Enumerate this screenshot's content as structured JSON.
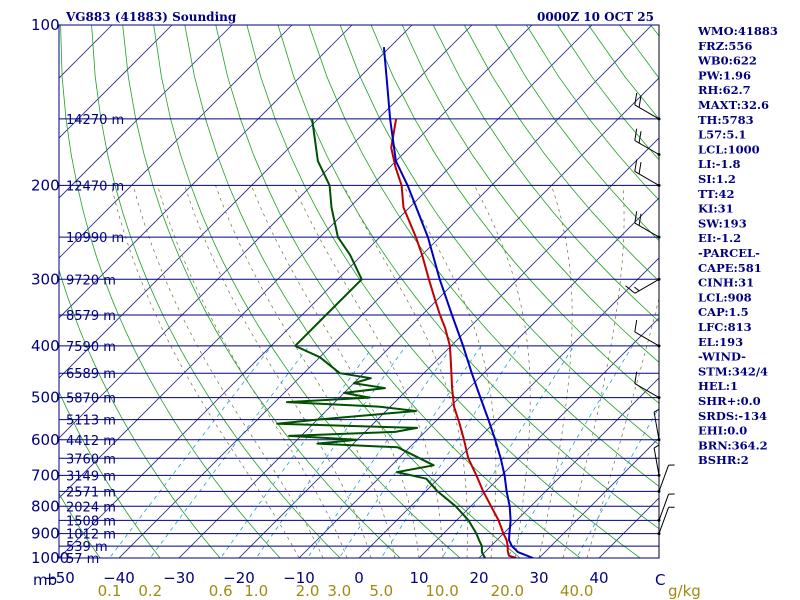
{
  "chart_data": {
    "type": "line",
    "title": "VG883 (41883) Sounding",
    "time": "0000Z 10 OCT 25",
    "pressure_unit": "mb",
    "mixing_ratio_unit": "g/kg",
    "xlim": [
      -50,
      50
    ],
    "plim": [
      1000,
      100
    ],
    "skew_deg": 45,
    "pressure_ticks": [
      "100",
      "200",
      "300",
      "400",
      "500",
      "600",
      "700",
      "800",
      "900",
      "1000"
    ],
    "temperature_ticks": [
      "−50",
      "−40",
      "−30",
      "−20",
      "−10",
      "0",
      "10",
      "20",
      "30",
      "40"
    ],
    "temperature_tick_end": "C",
    "mixing_ratio_ticks": [
      "0.1",
      "0.2",
      "0.6",
      "1.0",
      "2.0",
      "3.0",
      "5.0",
      "10.0",
      "20.0",
      "40.0"
    ],
    "height_levels": [
      {
        "p": 150,
        "label": "14270 m"
      },
      {
        "p": 200,
        "label": "12470 m"
      },
      {
        "p": 250,
        "label": "10990 m"
      },
      {
        "p": 300,
        "label": "9720 m"
      },
      {
        "p": 350,
        "label": "8579 m"
      },
      {
        "p": 400,
        "label": "7590 m"
      },
      {
        "p": 450,
        "label": "6589 m"
      },
      {
        "p": 500,
        "label": "5870 m"
      },
      {
        "p": 550,
        "label": "5113 m"
      },
      {
        "p": 600,
        "label": "4412 m"
      },
      {
        "p": 650,
        "label": "3760 m"
      },
      {
        "p": 700,
        "label": "3149 m"
      },
      {
        "p": 750,
        "label": "2571 m"
      },
      {
        "p": 800,
        "label": "2024 m"
      },
      {
        "p": 850,
        "label": "1508 m"
      },
      {
        "p": 900,
        "label": "1012 m"
      },
      {
        "p": 950,
        "label": "539 m"
      },
      {
        "p": 1000,
        "label": "57 m"
      }
    ],
    "series": [
      {
        "name": "Temperature",
        "color": "#c00000",
        "points": [
          [
            1000,
            26.2
          ],
          [
            990,
            24.6
          ],
          [
            970,
            23.6
          ],
          [
            950,
            22.8
          ],
          [
            925,
            21.6
          ],
          [
            900,
            20.0
          ],
          [
            850,
            17.0
          ],
          [
            800,
            13.4
          ],
          [
            750,
            9.6
          ],
          [
            700,
            5.8
          ],
          [
            650,
            1.6
          ],
          [
            600,
            -2.2
          ],
          [
            560,
            -5.6
          ],
          [
            520,
            -9.4
          ],
          [
            480,
            -12.8
          ],
          [
            450,
            -15.4
          ],
          [
            420,
            -18.2
          ],
          [
            400,
            -20.2
          ],
          [
            370,
            -24.0
          ],
          [
            350,
            -27.0
          ],
          [
            330,
            -30.0
          ],
          [
            300,
            -34.8
          ],
          [
            270,
            -40.0
          ],
          [
            250,
            -44.0
          ],
          [
            220,
            -51.0
          ],
          [
            200,
            -55.0
          ],
          [
            185,
            -59.0
          ],
          [
            170,
            -63.0
          ],
          [
            150,
            -67.0
          ]
        ]
      },
      {
        "name": "Dewpoint",
        "color": "#005000",
        "points": [
          [
            1000,
            21.0
          ],
          [
            975,
            19.5
          ],
          [
            950,
            18.5
          ],
          [
            925,
            17.0
          ],
          [
            900,
            15.5
          ],
          [
            850,
            12.0
          ],
          [
            800,
            7.5
          ],
          [
            750,
            2.0
          ],
          [
            710,
            -2.0
          ],
          [
            690,
            -8.0
          ],
          [
            670,
            -3.0
          ],
          [
            650,
            -6.5
          ],
          [
            620,
            -12.0
          ],
          [
            610,
            -26.0
          ],
          [
            600,
            -20.0
          ],
          [
            590,
            -32.0
          ],
          [
            580,
            -15.0
          ],
          [
            570,
            -12.0
          ],
          [
            560,
            -36.0
          ],
          [
            550,
            -30.0
          ],
          [
            530,
            -15.0
          ],
          [
            520,
            -22.0
          ],
          [
            510,
            -38.0
          ],
          [
            500,
            -25.0
          ],
          [
            490,
            -30.0
          ],
          [
            480,
            -24.0
          ],
          [
            470,
            -30.0
          ],
          [
            460,
            -28.0
          ],
          [
            450,
            -34.0
          ],
          [
            420,
            -40.0
          ],
          [
            400,
            -46.0
          ],
          [
            350,
            -46.0
          ],
          [
            300,
            -46.0
          ],
          [
            270,
            -52.0
          ],
          [
            250,
            -57.0
          ],
          [
            220,
            -63.0
          ],
          [
            200,
            -67.0
          ],
          [
            180,
            -73.0
          ],
          [
            150,
            -81.0
          ]
        ]
      },
      {
        "name": "Parcel",
        "color": "#0000c0",
        "points": [
          [
            1000,
            29.0
          ],
          [
            975,
            25.5
          ],
          [
            950,
            23.5
          ],
          [
            925,
            22.0
          ],
          [
            900,
            21.0
          ],
          [
            850,
            19.0
          ],
          [
            800,
            16.5
          ],
          [
            750,
            13.5
          ],
          [
            700,
            10.5
          ],
          [
            650,
            7.0
          ],
          [
            600,
            3.0
          ],
          [
            550,
            -1.5
          ],
          [
            500,
            -6.5
          ],
          [
            450,
            -12.0
          ],
          [
            400,
            -18.0
          ],
          [
            350,
            -25.0
          ],
          [
            300,
            -33.0
          ],
          [
            250,
            -42.0
          ],
          [
            200,
            -54.0
          ],
          [
            180,
            -60.0
          ],
          [
            150,
            -68.0
          ],
          [
            130,
            -74.0
          ],
          [
            110,
            -81.0
          ]
        ]
      }
    ],
    "wind_barbs": [
      {
        "p": 150,
        "dir": 300,
        "kt": 20
      },
      {
        "p": 175,
        "dir": 300,
        "kt": 20
      },
      {
        "p": 200,
        "dir": 300,
        "kt": 20
      },
      {
        "p": 250,
        "dir": 300,
        "kt": 20
      },
      {
        "p": 300,
        "dir": 240,
        "kt": 15
      },
      {
        "p": 400,
        "dir": 300,
        "kt": 10
      },
      {
        "p": 500,
        "dir": 300,
        "kt": 10
      },
      {
        "p": 600,
        "dir": 350,
        "kt": 5
      },
      {
        "p": 700,
        "dir": 350,
        "kt": 5
      },
      {
        "p": 750,
        "dir": 20,
        "kt": 5
      },
      {
        "p": 850,
        "dir": 20,
        "kt": 5
      },
      {
        "p": 900,
        "dir": 20,
        "kt": 5
      }
    ]
  },
  "indices": [
    "WMO:41883",
    "FRZ:556",
    "WB0:622",
    "PW:1.96",
    "RH:62.7",
    "MAXT:32.6",
    "TH:5783",
    "L57:5.1",
    "LCL:1000",
    "LI:-1.8",
    "SI:1.2",
    "TT:42",
    "KI:31",
    "SW:193",
    "EI:-1.2",
    "-PARCEL-",
    "CAPE:581",
    "CINH:31",
    "LCL:908",
    "CAP:1.5",
    "LFC:813",
    "EL:193",
    "-WIND-",
    "STM:342/4",
    "HEL:1",
    "SHR+:0.0",
    "SRDS:-134",
    "EHI:0.0",
    "BRN:364.2",
    "BSHR:2"
  ]
}
